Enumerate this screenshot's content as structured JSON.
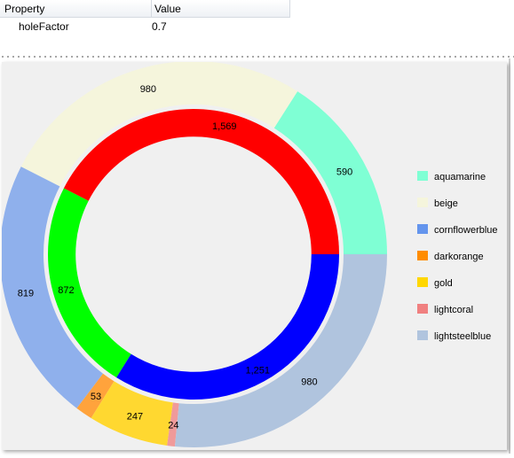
{
  "property_grid": {
    "header": {
      "property": "Property",
      "value": "Value"
    },
    "rows": [
      {
        "name": "holeFactor",
        "value": "0.7"
      }
    ]
  },
  "chart_data": {
    "type": "pie",
    "hole_factor": 0.7,
    "series": [
      {
        "ring": "outer",
        "slices": [
          {
            "label": "590",
            "value": 590,
            "color": "#7fffd4"
          },
          {
            "label": "980",
            "value": 980,
            "color": "#f5f5dc"
          },
          {
            "label": "819",
            "value": 819,
            "color": "#8fb0ec"
          },
          {
            "label": "53",
            "value": 53,
            "color": "#ffa33c"
          },
          {
            "label": "247",
            "value": 247,
            "color": "#ffd830"
          },
          {
            "label": "24",
            "value": 24,
            "color": "#f09a9a"
          },
          {
            "label": "980",
            "value": 980,
            "color": "#b0c4de"
          }
        ]
      },
      {
        "ring": "inner",
        "slices": [
          {
            "label": "1,569",
            "value": 1569,
            "color": "#ff0000"
          },
          {
            "label": "872",
            "value": 872,
            "color": "#00ff00"
          },
          {
            "label": "1,251",
            "value": 1251,
            "color": "#0000ff"
          }
        ]
      }
    ],
    "legend": {
      "placement": "right",
      "items": [
        {
          "label": "aquamarine",
          "color": "#7fffd4"
        },
        {
          "label": "beige",
          "color": "#f5f5dc"
        },
        {
          "label": "cornflowerblue",
          "color": "#6495ed"
        },
        {
          "label": "darkorange",
          "color": "#ff8c00"
        },
        {
          "label": "gold",
          "color": "#ffd700"
        },
        {
          "label": "lightcoral",
          "color": "#f08080"
        },
        {
          "label": "lightsteelblue",
          "color": "#b0c4de"
        }
      ]
    }
  }
}
